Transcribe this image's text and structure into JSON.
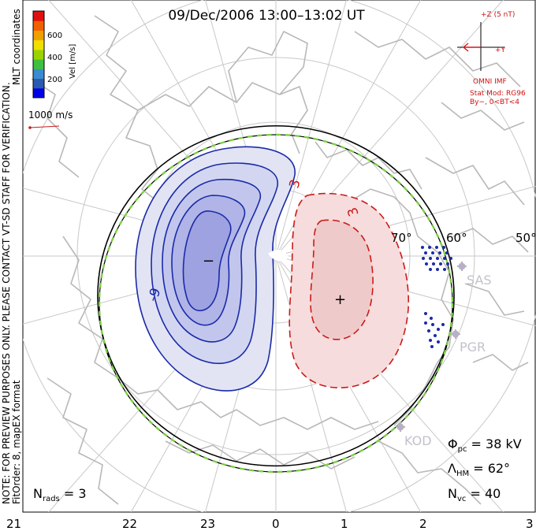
{
  "title": "09/Dec/2006 13:00–13:02 UT",
  "side_note": {
    "line1": "NOTE: FOR PREVIEW PURPOSES ONLY. PLEASE CONTACT VT-SD STAFF FOR VERIFICATION.",
    "line2": "FitOrder: 8, mapEX format"
  },
  "coord_label": "MLT coordinates",
  "colorbar": {
    "label": "Vel [m/s]",
    "ticks": [
      "600",
      "400",
      "200"
    ],
    "colors": [
      "#0000e8",
      "#2a5ab0",
      "#3a8cd0",
      "#40c040",
      "#9ad400",
      "#f0e000",
      "#f0a000",
      "#f06000",
      "#e01010"
    ]
  },
  "vector_scale": "1000 m/s",
  "imf": {
    "z_label": "+Z (5 nT)",
    "y_label": "+Y",
    "source": "OMNI IMF",
    "model_line1": "Stat Mod: RG96",
    "model_line2": "By−, 0<BT<4"
  },
  "latitude_labels": [
    "70°",
    "60°",
    "50°"
  ],
  "mlt_labels": [
    "21",
    "22",
    "23",
    "0",
    "1",
    "2",
    "3"
  ],
  "contours": {
    "negative_label": "-9",
    "positive_label": "3",
    "positive_label2": "3",
    "neg_center": "−",
    "pos_center": "+"
  },
  "radars": [
    "SAS",
    "PGR",
    "KOD"
  ],
  "stats": {
    "phi_pc": "Φ",
    "phi_sub": "pc",
    "phi_value": " = 38 kV",
    "lambda": "Λ",
    "lambda_sub": "HM",
    "lambda_value": " = 62°",
    "nvc": "N",
    "nvc_sub": "vc",
    "nvc_value": " = 40",
    "nrads": "N",
    "nrads_sub": "rads",
    "nrads_value": " = 3"
  },
  "colors": {
    "negative": "#1a2aa8",
    "positive": "#cc1a1a",
    "imf": "#d01010",
    "boundary_dash": "#7ad040",
    "land": "#b8b8b8",
    "grid": "#c8c8c8"
  }
}
